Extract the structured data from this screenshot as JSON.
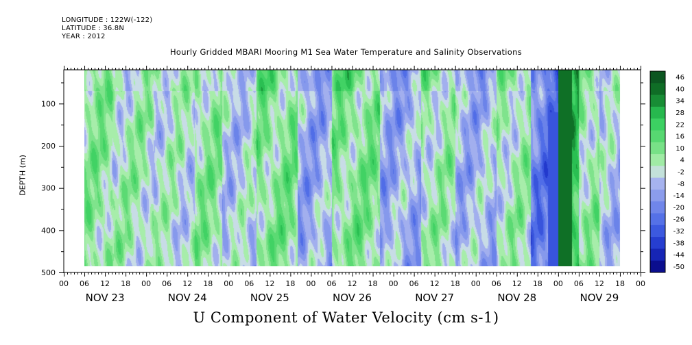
{
  "header": {
    "longitude": "LONGITUDE : 122W(-122)",
    "latitude": "LATITUDE : 36.8N",
    "year": "YEAR : 2012"
  },
  "chart_data": {
    "type": "heatmap",
    "title": "Hourly Gridded MBARI Mooring M1 Sea Water Temperature and Salinity Observations",
    "xlabel": "U Component of Water Velocity (cm s-1)",
    "ylabel": "DEPTH (m)",
    "x_hour_ticks": [
      "00",
      "06",
      "12",
      "18",
      "00",
      "06",
      "12",
      "18",
      "00",
      "06",
      "12",
      "18",
      "00",
      "06",
      "12",
      "18",
      "00",
      "06",
      "12",
      "18",
      "00",
      "06",
      "12",
      "18",
      "00",
      "06",
      "12",
      "18",
      "00"
    ],
    "x_day_labels": [
      "NOV 23",
      "NOV 24",
      "NOV 25",
      "NOV 26",
      "NOV 27",
      "NOV 28",
      "NOV 29"
    ],
    "y_ticks": [
      100,
      200,
      300,
      400,
      500
    ],
    "y_tick_labels": [
      "100",
      "200",
      "300",
      "400",
      "500"
    ],
    "y_range": [
      500,
      20
    ],
    "data_extent_hours": [
      6,
      162
    ],
    "data_extent_depth_m": [
      20,
      485
    ],
    "colorbar_levels": [
      "46",
      "40",
      "34",
      "28",
      "22",
      "16",
      "10",
      "4",
      "-2",
      "-8",
      "-14",
      "-20",
      "-26",
      "-32",
      "-38",
      "-44",
      "-50"
    ],
    "colormap": {
      "bottom": "#06037a",
      "lower_mid": "#4766e6",
      "near_zero_neg": "#b4bef0",
      "near_zero_pos": "#b4f0b4",
      "upper_mid": "#2fcd5a",
      "top": "#0a4a1e"
    },
    "field_structure": {
      "value_range_cm_s": [
        -44,
        46
      ],
      "description_bands": [
        {
          "hour_range": [
            6,
            14
          ],
          "value": 10
        },
        {
          "hour_range": [
            14,
            26
          ],
          "value": 6
        },
        {
          "hour_range": [
            26,
            38
          ],
          "value": 2
        },
        {
          "hour_range": [
            38,
            46
          ],
          "value": 10
        },
        {
          "hour_range": [
            46,
            56
          ],
          "value": -2
        },
        {
          "hour_range": [
            56,
            68
          ],
          "value": 12
        },
        {
          "hour_range": [
            68,
            78
          ],
          "value": -8
        },
        {
          "hour_range": [
            78,
            92
          ],
          "value": 12
        },
        {
          "hour_range": [
            92,
            104
          ],
          "value": -8
        },
        {
          "hour_range": [
            104,
            114
          ],
          "value": 6
        },
        {
          "hour_range": [
            114,
            126
          ],
          "value": -6
        },
        {
          "hour_range": [
            126,
            136
          ],
          "value": 6
        },
        {
          "hour_range": [
            136,
            144
          ],
          "value": -20
        },
        {
          "hour_range": [
            144,
            150
          ],
          "value": 30
        },
        {
          "hour_range": [
            150,
            156
          ],
          "value": 8
        },
        {
          "hour_range": [
            156,
            162
          ],
          "value": -4
        }
      ]
    }
  }
}
